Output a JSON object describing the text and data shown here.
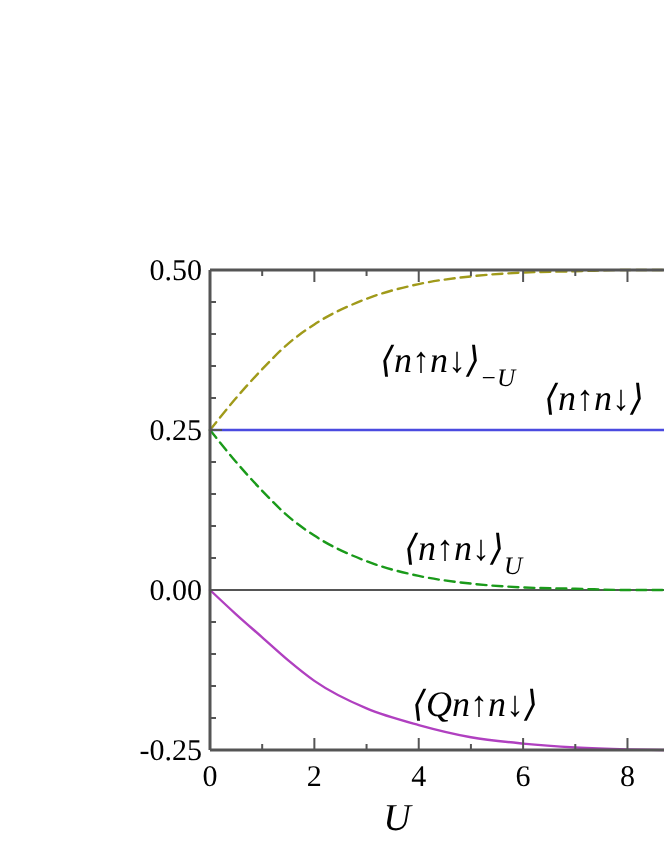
{
  "chart_data": {
    "type": "line",
    "xlabel": "U",
    "xlim": [
      0,
      8.7
    ],
    "xticks": [
      0,
      {
        "value": 1,
        "label": null
      },
      2,
      {
        "value": 3,
        "label": null
      },
      4,
      {
        "value": 5,
        "label": null
      },
      6,
      {
        "value": 7,
        "label": null
      },
      8
    ],
    "ylim": [
      -0.25,
      0.5
    ],
    "yticks": [
      {
        "value": -0.25,
        "label": "-0.25"
      },
      {
        "value": -0.2,
        "label": null
      },
      {
        "value": -0.15,
        "label": null
      },
      {
        "value": -0.1,
        "label": null
      },
      {
        "value": -0.05,
        "label": null
      },
      {
        "value": 0,
        "label": "0.00"
      },
      {
        "value": 0.05,
        "label": null
      },
      {
        "value": 0.1,
        "label": null
      },
      {
        "value": 0.15,
        "label": null
      },
      {
        "value": 0.2,
        "label": null
      },
      {
        "value": 0.25,
        "label": "0.25"
      },
      {
        "value": 0.3,
        "label": null
      },
      {
        "value": 0.35,
        "label": null
      },
      {
        "value": 0.4,
        "label": null
      },
      {
        "value": 0.45,
        "label": null
      },
      {
        "value": 0.5,
        "label": "0.50"
      }
    ],
    "x": [
      0,
      0.5,
      1,
      1.5,
      2,
      3,
      4,
      5,
      6,
      7,
      8,
      8.7
    ],
    "series": [
      {
        "name": "⟨n↑n↓⟩$_{−U}$",
        "color": "#a09a1a",
        "line_style": "dashed",
        "values": [
          0.25,
          0.3,
          0.345,
          0.385,
          0.415,
          0.455,
          0.478,
          0.49,
          0.496,
          0.498,
          0.5,
          0.5
        ]
      },
      {
        "name": "⟨n↑n↓⟩",
        "color": "#4a4ae0",
        "line_style": "solid",
        "values": [
          0.25,
          0.25,
          0.25,
          0.25,
          0.25,
          0.25,
          0.25,
          0.25,
          0.25,
          0.25,
          0.25,
          0.25
        ]
      },
      {
        "name": "⟨n↑n↓⟩$_{U}$",
        "color": "#1a9a1a",
        "line_style": "dashed",
        "values": [
          0.25,
          0.2,
          0.155,
          0.115,
          0.085,
          0.045,
          0.022,
          0.01,
          0.004,
          0.002,
          0.0,
          0.0
        ]
      },
      {
        "name": "⟨Qn↑n↓⟩",
        "color": "#b040c0",
        "line_style": "solid",
        "values": [
          0,
          -0.038,
          -0.074,
          -0.11,
          -0.142,
          -0.185,
          -0.211,
          -0.23,
          -0.24,
          -0.246,
          -0.249,
          -0.25
        ]
      }
    ],
    "ref_lines": [
      {
        "axis": "y",
        "value": 0,
        "color": "#555555"
      }
    ],
    "grid": false
  }
}
